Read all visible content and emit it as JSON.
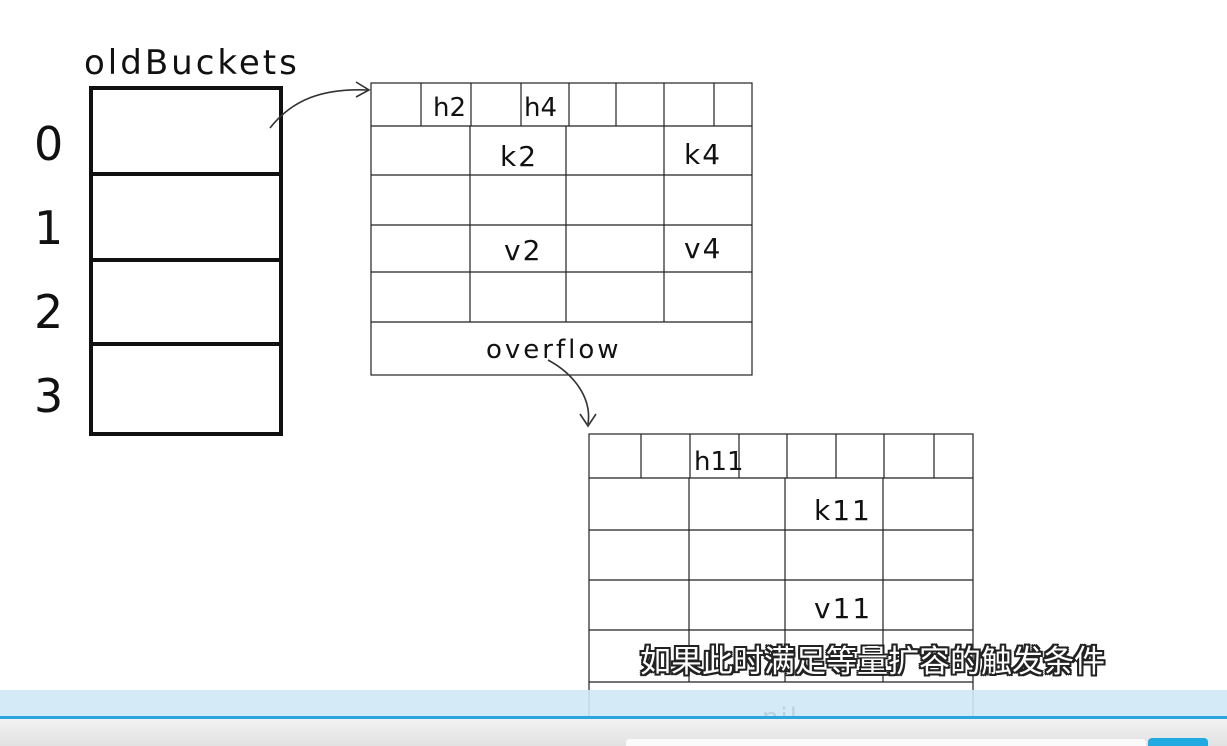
{
  "old_buckets": {
    "title": "oldBuckets",
    "indices": [
      "0",
      "1",
      "2",
      "3"
    ]
  },
  "bucket1": {
    "tophashes": [
      "h2",
      "h4"
    ],
    "keys": [
      "k2",
      "k4"
    ],
    "values": [
      "v2",
      "v4"
    ],
    "overflow_label": "overflow"
  },
  "bucket2": {
    "tophash": "h11",
    "key": "k11",
    "value": "v11",
    "overflow_label": "nil"
  },
  "subtitle": "如果此时满足等量扩容的触发条件",
  "colors": {
    "line": "#111111",
    "subtitle_text": "#ffffff",
    "accent_blue": "#2aa6de"
  }
}
